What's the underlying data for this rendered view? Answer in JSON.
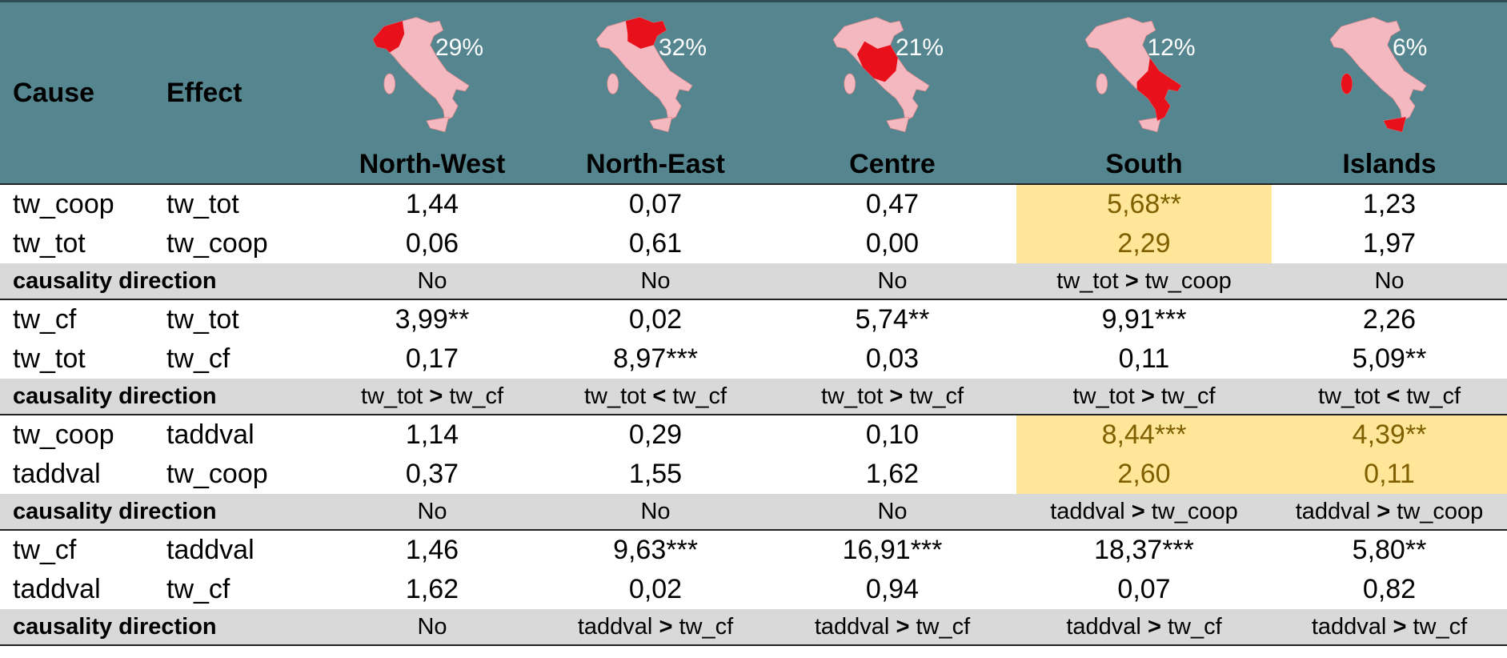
{
  "header": {
    "cause": "Cause",
    "effect": "Effect",
    "regions": [
      {
        "name": "North-West",
        "share": "29%"
      },
      {
        "name": "North-East",
        "share": "32%"
      },
      {
        "name": "Centre",
        "share": "21%"
      },
      {
        "name": "South",
        "share": "12%"
      },
      {
        "name": "Islands",
        "share": "6%"
      }
    ]
  },
  "direction_label": "causality direction",
  "blocks": [
    {
      "rows": [
        {
          "cause": "tw_coop",
          "effect": "tw_tot",
          "values": [
            "1,44",
            "0,07",
            "0,47",
            "5,68**",
            "1,23"
          ]
        },
        {
          "cause": "tw_tot",
          "effect": "tw_coop",
          "values": [
            "0,06",
            "0,61",
            "0,00",
            "2,29",
            "1,97"
          ]
        }
      ],
      "directions": [
        "No",
        "No",
        "No",
        {
          "left": "tw_tot",
          "op": ">",
          "right": "tw_coop"
        },
        "No"
      ],
      "highlight": [
        3
      ]
    },
    {
      "rows": [
        {
          "cause": "tw_cf",
          "effect": "tw_tot",
          "values": [
            "3,99**",
            "0,02",
            "5,74**",
            "9,91***",
            "2,26"
          ]
        },
        {
          "cause": "tw_tot",
          "effect": "tw_cf",
          "values": [
            "0,17",
            "8,97***",
            "0,03",
            "0,11",
            "5,09**"
          ]
        }
      ],
      "directions": [
        {
          "left": "tw_tot",
          "op": ">",
          "right": "tw_cf"
        },
        {
          "left": "tw_tot",
          "op": "<",
          "right": "tw_cf"
        },
        {
          "left": "tw_tot",
          "op": ">",
          "right": "tw_cf"
        },
        {
          "left": "tw_tot",
          "op": ">",
          "right": "tw_cf"
        },
        {
          "left": "tw_tot",
          "op": "<",
          "right": "tw_cf"
        }
      ],
      "highlight": []
    },
    {
      "rows": [
        {
          "cause": "tw_coop",
          "effect": "taddval",
          "values": [
            "1,14",
            "0,29",
            "0,10",
            "8,44***",
            "4,39**"
          ]
        },
        {
          "cause": "taddval",
          "effect": "tw_coop",
          "values": [
            "0,37",
            "1,55",
            "1,62",
            "2,60",
            "0,11"
          ]
        }
      ],
      "directions": [
        "No",
        "No",
        "No",
        {
          "left": "taddval",
          "op": ">",
          "right": "tw_coop"
        },
        {
          "left": "taddval",
          "op": ">",
          "right": "tw_coop"
        }
      ],
      "highlight": [
        3,
        4
      ]
    },
    {
      "rows": [
        {
          "cause": "tw_cf",
          "effect": "taddval",
          "values": [
            "1,46",
            "9,63***",
            "16,91***",
            "18,37***",
            "5,80**"
          ]
        },
        {
          "cause": "taddval",
          "effect": "tw_cf",
          "values": [
            "1,62",
            "0,02",
            "0,94",
            "0,07",
            "0,82"
          ]
        }
      ],
      "directions": [
        "No",
        {
          "left": "taddval",
          "op": ">",
          "right": "tw_cf"
        },
        {
          "left": "taddval",
          "op": ">",
          "right": "tw_cf"
        },
        {
          "left": "taddval",
          "op": ">",
          "right": "tw_cf"
        },
        {
          "left": "taddval",
          "op": ">",
          "right": "tw_cf"
        }
      ],
      "highlight": []
    }
  ]
}
